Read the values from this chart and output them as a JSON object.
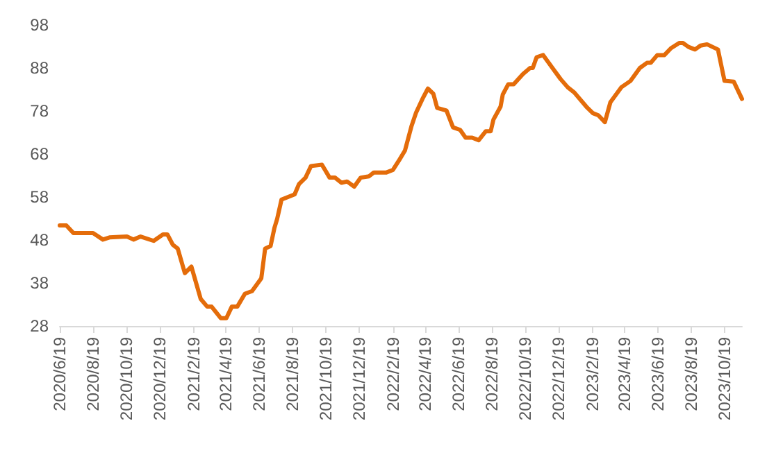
{
  "chart_data": {
    "type": "line",
    "color": "#e46c0a",
    "grid": false,
    "marker": "none",
    "line_style": "solid",
    "xlim": [
      "2020-06-19",
      "2023-11-20"
    ],
    "xticks": [
      {
        "value": "2020-06-19",
        "label": "2020/6/19"
      },
      {
        "value": "2020-08-19",
        "label": "2020/8/19"
      },
      {
        "value": "2020-10-19",
        "label": "2020/10/19"
      },
      {
        "value": "2020-12-19",
        "label": "2020/12/19"
      },
      {
        "value": "2021-02-19",
        "label": "2021/2/19"
      },
      {
        "value": "2021-04-19",
        "label": "2021/4/19"
      },
      {
        "value": "2021-06-19",
        "label": "2021/6/19"
      },
      {
        "value": "2021-08-19",
        "label": "2021/8/19"
      },
      {
        "value": "2021-10-19",
        "label": "2021/10/19"
      },
      {
        "value": "2021-12-19",
        "label": "2021/12/19"
      },
      {
        "value": "2022-02-19",
        "label": "2022/2/19"
      },
      {
        "value": "2022-04-19",
        "label": "2022/4/19"
      },
      {
        "value": "2022-06-19",
        "label": "2022/6/19"
      },
      {
        "value": "2022-08-19",
        "label": "2022/8/19"
      },
      {
        "value": "2022-10-19",
        "label": "2022/10/19"
      },
      {
        "value": "2022-12-19",
        "label": "2022/12/19"
      },
      {
        "value": "2023-02-19",
        "label": "2023/2/19"
      },
      {
        "value": "2023-04-19",
        "label": "2023/4/19"
      },
      {
        "value": "2023-06-19",
        "label": "2023/6/19"
      },
      {
        "value": "2023-08-19",
        "label": "2023/8/19"
      },
      {
        "value": "2023-10-19",
        "label": "2023/10/19"
      }
    ],
    "ylim": [
      28,
      98
    ],
    "yticks": [
      28,
      38,
      48,
      58,
      68,
      78,
      88,
      98
    ],
    "x": [
      "2020-06-19",
      "2020-07-01",
      "2020-07-14",
      "2020-08-19",
      "2020-09-06",
      "2020-09-18",
      "2020-10-20",
      "2020-11-01",
      "2020-11-14",
      "2020-12-08",
      "2020-12-25",
      "2021-01-02",
      "2021-01-12",
      "2021-01-21",
      "2021-02-03",
      "2021-02-15",
      "2021-03-04",
      "2021-03-16",
      "2021-03-24",
      "2021-04-10",
      "2021-04-20",
      "2021-04-30",
      "2021-05-10",
      "2021-05-24",
      "2021-06-06",
      "2021-06-23",
      "2021-06-30",
      "2021-07-10",
      "2021-07-17",
      "2021-07-22",
      "2021-07-30",
      "2021-08-11",
      "2021-08-23",
      "2021-08-31",
      "2021-09-12",
      "2021-09-22",
      "2021-10-12",
      "2021-10-26",
      "2021-11-05",
      "2021-11-17",
      "2021-11-27",
      "2021-12-10",
      "2021-12-22",
      "2022-01-06",
      "2022-01-15",
      "2022-02-07",
      "2022-02-19",
      "2022-03-03",
      "2022-03-13",
      "2022-03-25",
      "2022-04-02",
      "2022-04-14",
      "2022-04-24",
      "2022-05-04",
      "2022-05-11",
      "2022-05-28",
      "2022-06-09",
      "2022-06-22",
      "2022-07-02",
      "2022-07-14",
      "2022-07-26",
      "2022-08-08",
      "2022-08-17",
      "2022-08-22",
      "2022-09-04",
      "2022-09-08",
      "2022-09-18",
      "2022-09-28",
      "2022-10-15",
      "2022-10-28",
      "2022-11-02",
      "2022-11-09",
      "2022-11-21",
      "2022-12-08",
      "2022-12-23",
      "2023-01-05",
      "2023-01-17",
      "2023-02-08",
      "2023-02-20",
      "2023-03-02",
      "2023-03-14",
      "2023-03-24",
      "2023-04-13",
      "2023-04-30",
      "2023-05-17",
      "2023-05-30",
      "2023-06-06",
      "2023-06-18",
      "2023-07-01",
      "2023-07-13",
      "2023-07-28",
      "2023-08-04",
      "2023-08-14",
      "2023-08-26",
      "2023-09-05",
      "2023-09-17",
      "2023-10-07",
      "2023-10-19",
      "2023-11-05",
      "2023-11-20"
    ],
    "values": [
      51.4,
      51.4,
      49.6,
      49.6,
      48.1,
      48.6,
      48.8,
      48.1,
      48.8,
      47.8,
      49.3,
      49.3,
      46.9,
      46,
      40.3,
      41.8,
      34.3,
      32.5,
      32.5,
      29.8,
      29.8,
      32.5,
      32.5,
      35.5,
      36.1,
      39.1,
      46,
      46.6,
      50.8,
      52.9,
      57.4,
      58,
      58.6,
      61,
      62.5,
      65.2,
      65.5,
      62.5,
      62.5,
      61.3,
      61.6,
      60.4,
      62.5,
      62.8,
      63.7,
      63.7,
      64.3,
      66.7,
      68.8,
      74.5,
      77.5,
      80.8,
      83.2,
      82,
      78.7,
      78.1,
      74.2,
      73.6,
      71.8,
      71.8,
      71.2,
      73.3,
      73.3,
      76,
      79,
      81.8,
      84.2,
      84.2,
      86.6,
      88,
      88,
      90.5,
      91,
      88,
      85.4,
      83.5,
      82.3,
      79,
      77.5,
      77,
      75.4,
      80,
      83.5,
      85,
      88,
      89.2,
      89.2,
      91,
      91,
      92.6,
      93.8,
      93.8,
      92.9,
      92.3,
      93.2,
      93.5,
      92.3,
      85,
      84.8,
      80.8
    ]
  }
}
